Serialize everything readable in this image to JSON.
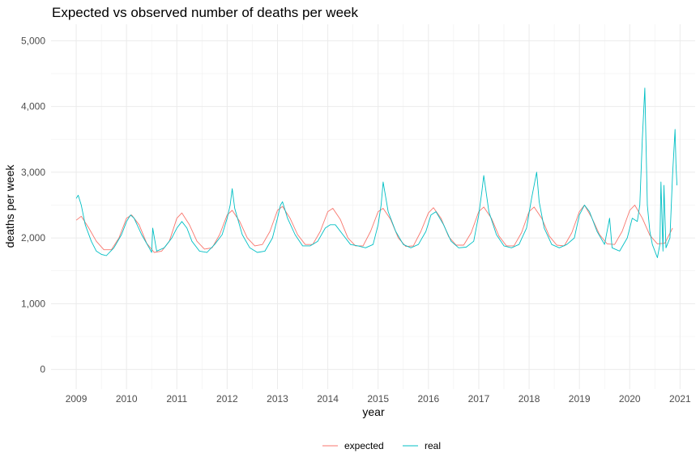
{
  "chart_data": {
    "type": "line",
    "title": "Expected vs observed number of deaths per week",
    "xlabel": "year",
    "ylabel": "deaths per week",
    "xlim": [
      2008.5,
      2021.3
    ],
    "ylim": [
      -300,
      5250
    ],
    "x_ticks": [
      "2009",
      "2010",
      "2011",
      "2012",
      "2013",
      "2014",
      "2015",
      "2016",
      "2017",
      "2018",
      "2019",
      "2020",
      "2021"
    ],
    "y_ticks": [
      0,
      1000,
      2000,
      3000,
      4000,
      5000
    ],
    "y_tick_labels": [
      "0",
      "1,000",
      "2,000",
      "3,000",
      "4,000",
      "5,000"
    ],
    "grid": true,
    "legend_position": "bottom",
    "series": [
      {
        "name": "expected",
        "color": "#F8766D",
        "x": [
          2009.0,
          2009.1,
          2009.25,
          2009.4,
          2009.55,
          2009.7,
          2009.85,
          2010.0,
          2010.1,
          2010.25,
          2010.4,
          2010.55,
          2010.7,
          2010.85,
          2011.0,
          2011.1,
          2011.25,
          2011.4,
          2011.55,
          2011.7,
          2011.85,
          2012.0,
          2012.1,
          2012.25,
          2012.4,
          2012.55,
          2012.7,
          2012.85,
          2013.0,
          2013.1,
          2013.25,
          2013.4,
          2013.55,
          2013.7,
          2013.85,
          2014.0,
          2014.1,
          2014.25,
          2014.4,
          2014.55,
          2014.7,
          2014.85,
          2015.0,
          2015.1,
          2015.25,
          2015.4,
          2015.55,
          2015.7,
          2015.85,
          2016.0,
          2016.1,
          2016.25,
          2016.4,
          2016.55,
          2016.7,
          2016.85,
          2017.0,
          2017.1,
          2017.25,
          2017.4,
          2017.55,
          2017.7,
          2017.85,
          2018.0,
          2018.1,
          2018.25,
          2018.4,
          2018.55,
          2018.7,
          2018.85,
          2019.0,
          2019.1,
          2019.25,
          2019.4,
          2019.55,
          2019.7,
          2019.85,
          2020.0,
          2020.1,
          2020.25,
          2020.4,
          2020.55,
          2020.7,
          2020.85
        ],
        "values": [
          2270,
          2330,
          2150,
          1950,
          1820,
          1820,
          2000,
          2300,
          2350,
          2200,
          1920,
          1780,
          1800,
          1950,
          2300,
          2380,
          2200,
          1950,
          1830,
          1850,
          2050,
          2350,
          2420,
          2250,
          2000,
          1880,
          1900,
          2100,
          2420,
          2480,
          2300,
          2050,
          1900,
          1900,
          2100,
          2400,
          2450,
          2280,
          2000,
          1880,
          1880,
          2100,
          2400,
          2450,
          2280,
          2000,
          1870,
          1880,
          2100,
          2380,
          2460,
          2300,
          2020,
          1890,
          1890,
          2080,
          2400,
          2470,
          2300,
          2030,
          1880,
          1880,
          2080,
          2400,
          2470,
          2300,
          2030,
          1890,
          1880,
          2080,
          2400,
          2500,
          2300,
          2050,
          1910,
          1900,
          2100,
          2420,
          2500,
          2300,
          2040,
          1910,
          1920,
          2150
        ]
      },
      {
        "name": "real",
        "color": "#00BFC4",
        "x": [
          2009.0,
          2009.04,
          2009.1,
          2009.18,
          2009.3,
          2009.4,
          2009.5,
          2009.6,
          2009.75,
          2009.9,
          2010.0,
          2010.08,
          2010.15,
          2010.3,
          2010.45,
          2010.5,
          2010.52,
          2010.6,
          2010.75,
          2010.9,
          2011.0,
          2011.1,
          2011.2,
          2011.3,
          2011.45,
          2011.6,
          2011.75,
          2011.9,
          2012.0,
          2012.06,
          2012.1,
          2012.15,
          2012.3,
          2012.45,
          2012.6,
          2012.75,
          2012.9,
          2013.0,
          2013.06,
          2013.1,
          2013.2,
          2013.35,
          2013.5,
          2013.65,
          2013.8,
          2013.95,
          2014.05,
          2014.15,
          2014.3,
          2014.45,
          2014.6,
          2014.75,
          2014.9,
          2015.0,
          2015.06,
          2015.1,
          2015.2,
          2015.35,
          2015.5,
          2015.65,
          2015.8,
          2015.95,
          2016.05,
          2016.15,
          2016.3,
          2016.45,
          2016.6,
          2016.75,
          2016.9,
          2017.0,
          2017.06,
          2017.1,
          2017.2,
          2017.35,
          2017.5,
          2017.65,
          2017.8,
          2017.95,
          2018.05,
          2018.15,
          2018.2,
          2018.3,
          2018.45,
          2018.6,
          2018.75,
          2018.9,
          2019.0,
          2019.1,
          2019.2,
          2019.35,
          2019.5,
          2019.6,
          2019.65,
          2019.8,
          2019.95,
          2020.05,
          2020.15,
          2020.2,
          2020.25,
          2020.3,
          2020.35,
          2020.4,
          2020.45,
          2020.5,
          2020.55,
          2020.6,
          2020.62,
          2020.66,
          2020.68,
          2020.72,
          2020.8,
          2020.85,
          2020.9,
          2020.92,
          2020.94
        ],
        "values": [
          2600,
          2650,
          2500,
          2200,
          1950,
          1800,
          1750,
          1730,
          1850,
          2050,
          2250,
          2350,
          2300,
          2050,
          1850,
          1780,
          2150,
          1800,
          1850,
          2000,
          2150,
          2250,
          2150,
          1950,
          1800,
          1780,
          1900,
          2050,
          2300,
          2500,
          2750,
          2450,
          2050,
          1850,
          1780,
          1800,
          2000,
          2300,
          2500,
          2550,
          2300,
          2050,
          1880,
          1880,
          1950,
          2150,
          2200,
          2200,
          2050,
          1900,
          1880,
          1850,
          1900,
          2200,
          2500,
          2850,
          2400,
          2100,
          1900,
          1850,
          1900,
          2100,
          2350,
          2400,
          2200,
          1950,
          1850,
          1860,
          1950,
          2350,
          2700,
          2950,
          2400,
          2050,
          1880,
          1850,
          1900,
          2150,
          2600,
          3000,
          2550,
          2150,
          1900,
          1850,
          1900,
          2000,
          2350,
          2500,
          2400,
          2100,
          1900,
          2300,
          1850,
          1800,
          2000,
          2300,
          2250,
          2500,
          3500,
          4280,
          2500,
          2100,
          1900,
          1800,
          1700,
          1900,
          2850,
          1800,
          2800,
          1850,
          2000,
          2950,
          3650,
          3100,
          2800
        ]
      }
    ]
  }
}
